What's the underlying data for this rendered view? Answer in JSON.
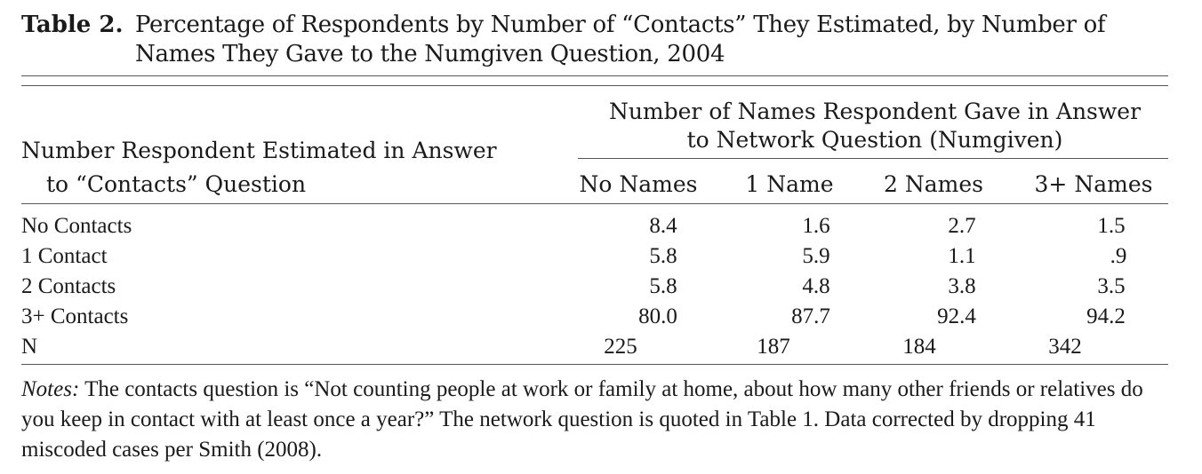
{
  "table": {
    "label": "Table 2.",
    "title_line1": "Percentage of Respondents by Number of “Contacts” They Estimated, by Number of",
    "title_line2": "Names They Gave to the Numgiven Question, 2004",
    "stub_header_line1": "Number Respondent Estimated in Answer",
    "stub_header_line2": "to “Contacts” Question",
    "spanner_line1": "Number of Names Respondent Gave in Answer",
    "spanner_line2": "to Network Question (Numgiven)",
    "columns": [
      "No Names",
      "1 Name",
      "2 Names",
      "3+ Names"
    ],
    "rows": [
      {
        "label": "No Contacts",
        "values": [
          "8.4",
          "1.6",
          "2.7",
          "1.5"
        ]
      },
      {
        "label": "1 Contact",
        "values": [
          "5.8",
          "5.9",
          "1.1",
          ".9"
        ]
      },
      {
        "label": "2 Contacts",
        "values": [
          "5.8",
          "4.8",
          "3.8",
          "3.5"
        ]
      },
      {
        "label": "3+ Contacts",
        "values": [
          "80.0",
          "87.7",
          "92.4",
          "94.2"
        ]
      },
      {
        "label": "N",
        "values": [
          "225",
          "187",
          "184",
          "342"
        ]
      }
    ]
  },
  "notes": {
    "label": "Notes:",
    "text": " The contacts question is “Not counting people at work or family at home, about how many other friends or relatives do you keep in contact with at least once a year?” The network question is quoted in Table 1. Data corrected by dropping 41 miscoded cases per Smith (2008)."
  }
}
